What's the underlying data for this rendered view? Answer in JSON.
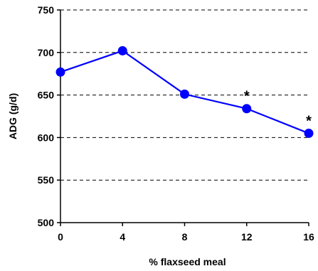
{
  "chart_data": {
    "type": "line",
    "title": "",
    "xlabel": "% flaxseed meal",
    "ylabel": "ADG (g/d)",
    "x": [
      0,
      4,
      8,
      12,
      16
    ],
    "x_tick_labels": [
      "0",
      "4",
      "8",
      "12",
      "16"
    ],
    "xlim": [
      0,
      16
    ],
    "ylim": [
      500,
      750
    ],
    "y_ticks": [
      500,
      550,
      600,
      650,
      700,
      750
    ],
    "y_tick_labels": [
      "500",
      "550",
      "600",
      "650",
      "700",
      "750"
    ],
    "grid": "horizontal dashed",
    "legend": "none",
    "series": [
      {
        "values": [
          677,
          702,
          651,
          634,
          605
        ],
        "color": "#0000ff",
        "marker": "circle"
      }
    ],
    "annotations": [
      {
        "text": "*",
        "x": 12
      },
      {
        "text": "*",
        "x": 16
      }
    ]
  }
}
